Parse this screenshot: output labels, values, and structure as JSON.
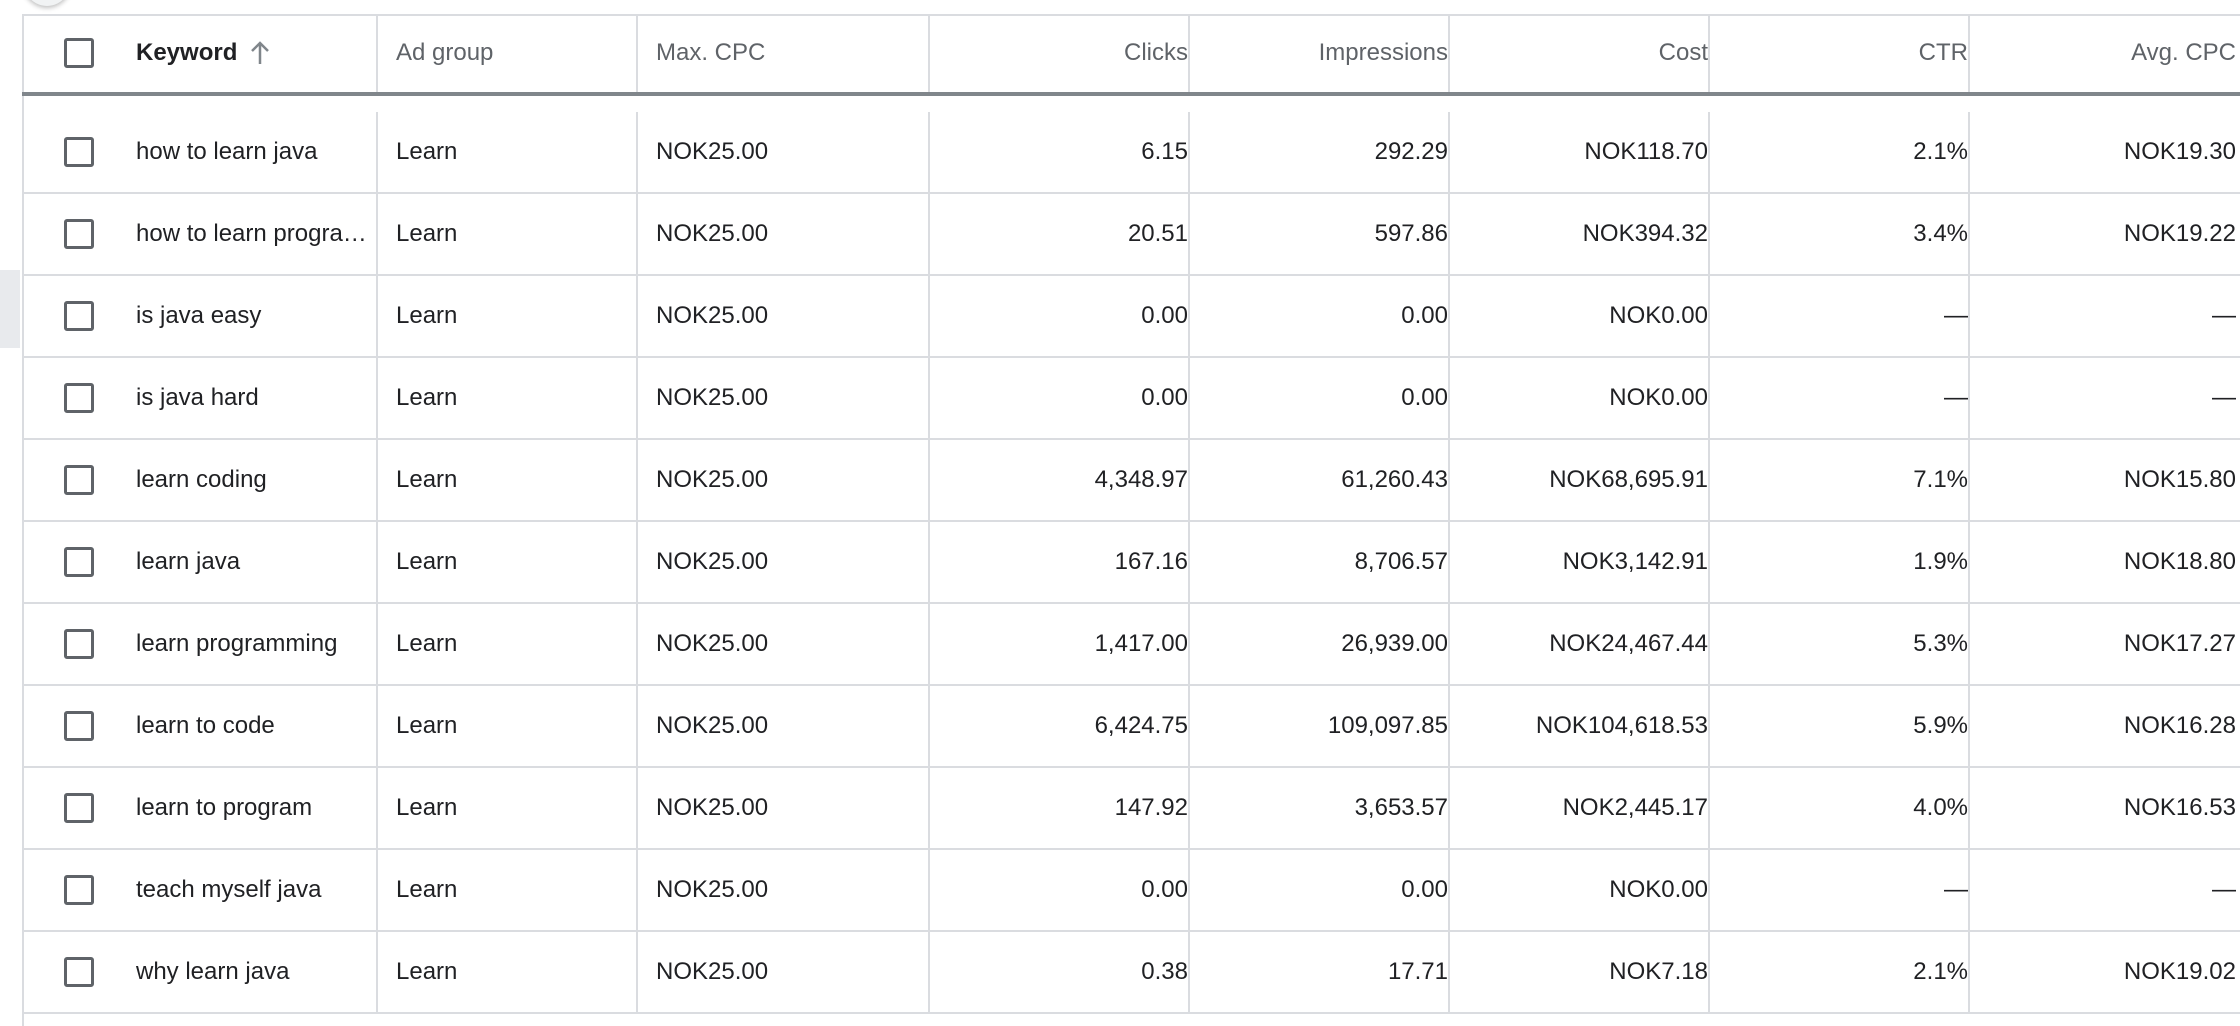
{
  "table": {
    "columns": {
      "keyword": "Keyword",
      "ad_group": "Ad group",
      "max_cpc": "Max. CPC",
      "clicks": "Clicks",
      "impressions": "Impressions",
      "cost": "Cost",
      "ctr": "CTR",
      "avg_cpc": "Avg. CPC"
    },
    "sort": {
      "column": "keyword",
      "direction": "ascending",
      "icon": "arrow-up-icon"
    },
    "rows": [
      {
        "keyword": "how to learn java",
        "ad_group": "Learn",
        "max_cpc": "NOK25.00",
        "clicks": "6.15",
        "impressions": "292.29",
        "cost": "NOK118.70",
        "ctr": "2.1%",
        "avg_cpc": "NOK19.30"
      },
      {
        "keyword": "how to learn progra…",
        "ad_group": "Learn",
        "max_cpc": "NOK25.00",
        "clicks": "20.51",
        "impressions": "597.86",
        "cost": "NOK394.32",
        "ctr": "3.4%",
        "avg_cpc": "NOK19.22"
      },
      {
        "keyword": "is java easy",
        "ad_group": "Learn",
        "max_cpc": "NOK25.00",
        "clicks": "0.00",
        "impressions": "0.00",
        "cost": "NOK0.00",
        "ctr": "—",
        "avg_cpc": "—"
      },
      {
        "keyword": "is java hard",
        "ad_group": "Learn",
        "max_cpc": "NOK25.00",
        "clicks": "0.00",
        "impressions": "0.00",
        "cost": "NOK0.00",
        "ctr": "—",
        "avg_cpc": "—"
      },
      {
        "keyword": "learn coding",
        "ad_group": "Learn",
        "max_cpc": "NOK25.00",
        "clicks": "4,348.97",
        "impressions": "61,260.43",
        "cost": "NOK68,695.91",
        "ctr": "7.1%",
        "avg_cpc": "NOK15.80"
      },
      {
        "keyword": "learn java",
        "ad_group": "Learn",
        "max_cpc": "NOK25.00",
        "clicks": "167.16",
        "impressions": "8,706.57",
        "cost": "NOK3,142.91",
        "ctr": "1.9%",
        "avg_cpc": "NOK18.80"
      },
      {
        "keyword": "learn programming",
        "ad_group": "Learn",
        "max_cpc": "NOK25.00",
        "clicks": "1,417.00",
        "impressions": "26,939.00",
        "cost": "NOK24,467.44",
        "ctr": "5.3%",
        "avg_cpc": "NOK17.27"
      },
      {
        "keyword": "learn to code",
        "ad_group": "Learn",
        "max_cpc": "NOK25.00",
        "clicks": "6,424.75",
        "impressions": "109,097.85",
        "cost": "NOK104,618.53",
        "ctr": "5.9%",
        "avg_cpc": "NOK16.28"
      },
      {
        "keyword": "learn to program",
        "ad_group": "Learn",
        "max_cpc": "NOK25.00",
        "clicks": "147.92",
        "impressions": "3,653.57",
        "cost": "NOK2,445.17",
        "ctr": "4.0%",
        "avg_cpc": "NOK16.53"
      },
      {
        "keyword": "teach myself java",
        "ad_group": "Learn",
        "max_cpc": "NOK25.00",
        "clicks": "0.00",
        "impressions": "0.00",
        "cost": "NOK0.00",
        "ctr": "—",
        "avg_cpc": "—"
      },
      {
        "keyword": "why learn java",
        "ad_group": "Learn",
        "max_cpc": "NOK25.00",
        "clicks": "0.38",
        "impressions": "17.71",
        "cost": "NOK7.18",
        "ctr": "2.1%",
        "avg_cpc": "NOK19.02"
      }
    ]
  }
}
